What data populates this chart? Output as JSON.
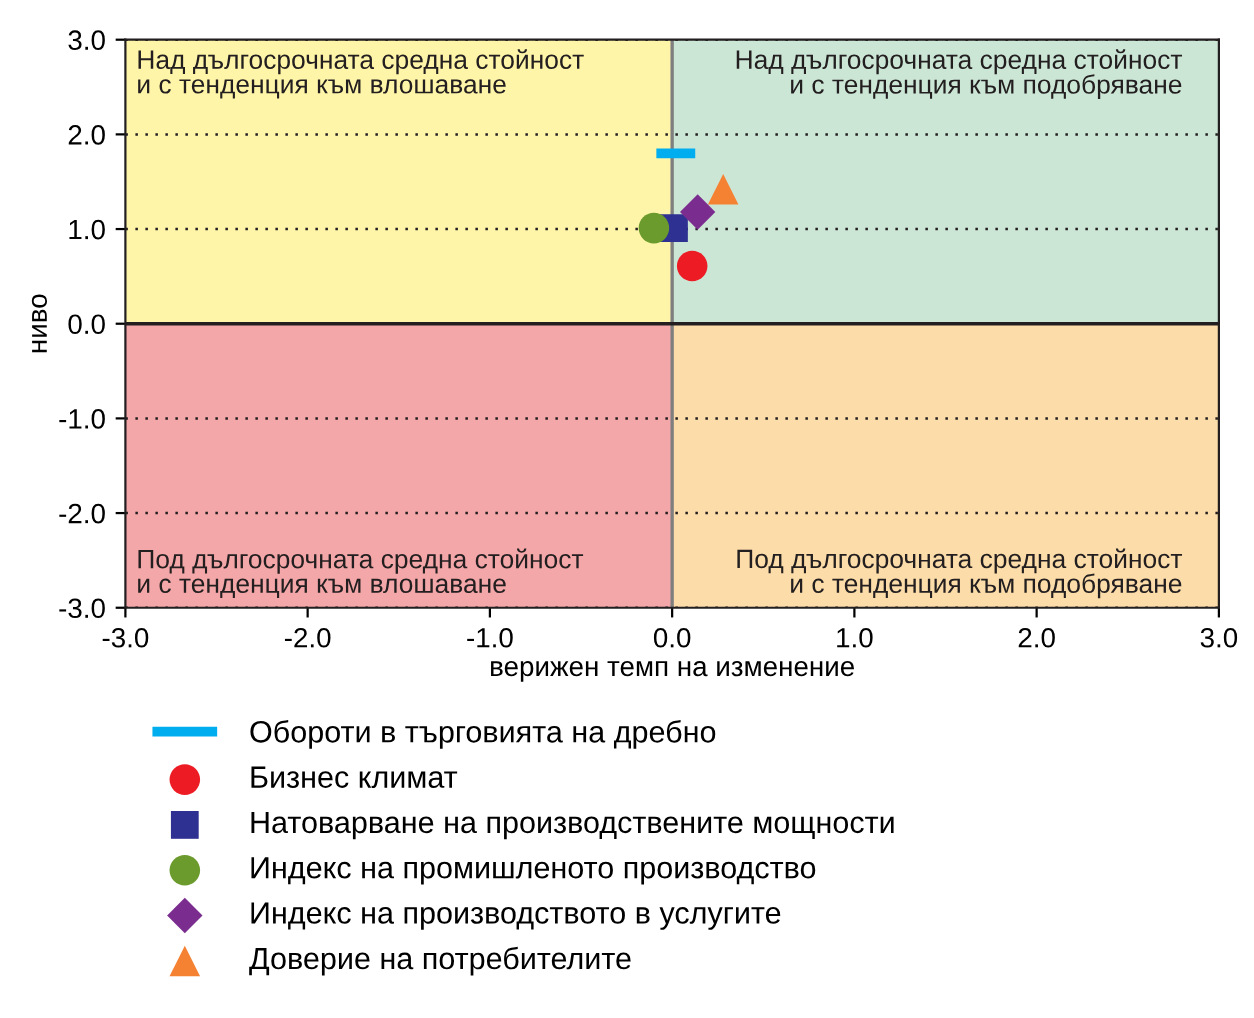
{
  "chart_data": {
    "type": "scatter",
    "xlabel": "верижен темп на изменение",
    "ylabel": "ниво",
    "xlim": [
      -3.0,
      3.0
    ],
    "ylim": [
      -3.0,
      3.0
    ],
    "xticks": [
      {
        "value": -3,
        "label": "-3.0"
      },
      {
        "value": -2,
        "label": "-2.0"
      },
      {
        "value": -1,
        "label": "-1.0"
      },
      {
        "value": 0,
        "label": "0.0"
      },
      {
        "value": 1,
        "label": "1.0"
      },
      {
        "value": 2,
        "label": "2.0"
      },
      {
        "value": 3,
        "label": "3.0"
      }
    ],
    "yticks": [
      {
        "value": -3,
        "label": "-3.0"
      },
      {
        "value": -2,
        "label": "-2.0"
      },
      {
        "value": -1,
        "label": "-1.0"
      },
      {
        "value": 0,
        "label": "0.0"
      },
      {
        "value": 1,
        "label": "1.0"
      },
      {
        "value": 2,
        "label": "2.0"
      },
      {
        "value": 3,
        "label": "3.0"
      }
    ],
    "grid": "y",
    "legend": "bottom",
    "annotations": [
      "Над дългосрочната средна стойност\nи с тенденция към влошаване",
      "Над дългосрочната средна стойност\nи с тенденция към подобряване",
      "Под дългосрочната средна стойност\nи с тенденция към влошаване",
      "Под дългосрочната средна стойност\nи с тенденция към подобряване"
    ],
    "ref_lines": [
      {
        "axis": "x",
        "value": 0.0,
        "color": "#7f7f7f"
      },
      {
        "axis": "y",
        "value": 0.0,
        "color": "#231f20"
      }
    ],
    "series": [
      {
        "name": "Обороти в търговията на дребно",
        "type": "line",
        "line_style": "solid",
        "marker": "none",
        "color": "#00aeef",
        "x": [
          -0.06,
          0.1
        ],
        "values": [
          1.8,
          1.8
        ]
      },
      {
        "name": "Бизнес климат",
        "color": "#ed1c24",
        "marker": "circle",
        "x": [
          0.11
        ],
        "values": [
          0.61
        ]
      },
      {
        "name": "Натоварване на производствените мощности",
        "color": "#2e3192",
        "marker": "square",
        "x": [
          0.01
        ],
        "values": [
          1.01
        ]
      },
      {
        "name": "Индекс на промишленото производство",
        "color": "#6b9a2d",
        "marker": "circle",
        "x": [
          -0.1
        ],
        "values": [
          1.01
        ]
      },
      {
        "name": "Индекс на производството в услугите",
        "color": "#7b2c8f",
        "marker": "diamond",
        "x": [
          0.14
        ],
        "values": [
          1.18
        ]
      },
      {
        "name": "Доверие на потребителите",
        "color": "#f58233",
        "marker": "triangle",
        "x": [
          0.28
        ],
        "values": [
          1.42
        ]
      }
    ]
  }
}
